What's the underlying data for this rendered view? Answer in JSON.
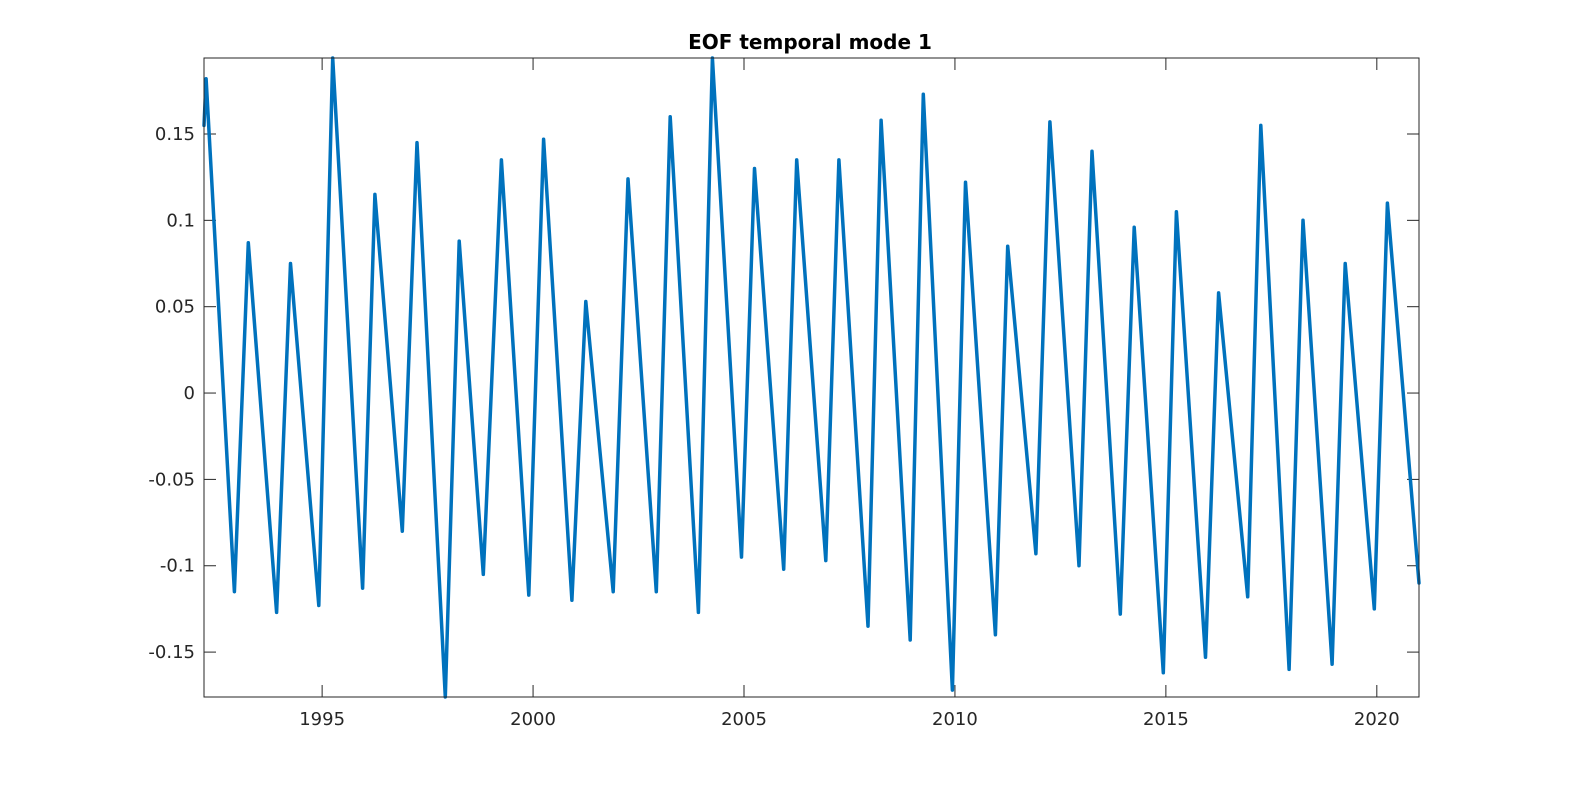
{
  "chart_data": {
    "type": "line",
    "title": "EOF temporal mode 1",
    "xlabel": "",
    "ylabel": "",
    "xlim": [
      1992.2,
      2021.0
    ],
    "ylim": [
      -0.176,
      0.194
    ],
    "xticks": [
      1995,
      2000,
      2005,
      2010,
      2015,
      2020
    ],
    "xtick_labels": [
      "1995",
      "2000",
      "2005",
      "2010",
      "2015",
      "2020"
    ],
    "yticks": [
      -0.15,
      -0.1,
      -0.05,
      0,
      0.05,
      0.1,
      0.15
    ],
    "ytick_labels": [
      "-0.15",
      "-0.1",
      "-0.05",
      "0",
      "0.05",
      "0.1",
      "0.15"
    ],
    "grid": false,
    "box": true,
    "series": [
      {
        "color": "#0072BD",
        "x": [
          1992.2,
          1992.25,
          1992.92,
          1993.25,
          1993.92,
          1994.25,
          1994.92,
          1995.25,
          1995.96,
          1996.25,
          1996.9,
          1997.25,
          1997.92,
          1998.25,
          1998.82,
          1999.25,
          1999.9,
          2000.25,
          2000.92,
          2001.25,
          2001.9,
          2002.25,
          2002.92,
          2003.25,
          2003.92,
          2004.25,
          2004.94,
          2005.25,
          2005.94,
          2006.25,
          2006.94,
          2007.25,
          2007.94,
          2008.25,
          2008.94,
          2009.25,
          2009.94,
          2010.25,
          2010.96,
          2011.25,
          2011.92,
          2012.25,
          2012.94,
          2013.25,
          2013.92,
          2014.25,
          2014.94,
          2015.25,
          2015.94,
          2016.25,
          2016.94,
          2017.25,
          2017.92,
          2018.25,
          2018.94,
          2019.25,
          2019.94,
          2020.25,
          2021.0
        ],
        "y": [
          0.155,
          0.182,
          -0.115,
          0.087,
          -0.127,
          0.075,
          -0.123,
          0.194,
          -0.113,
          0.115,
          -0.08,
          0.145,
          -0.176,
          0.088,
          -0.105,
          0.135,
          -0.117,
          0.147,
          -0.12,
          0.053,
          -0.115,
          0.124,
          -0.115,
          0.16,
          -0.127,
          0.194,
          -0.095,
          0.13,
          -0.102,
          0.135,
          -0.097,
          0.135,
          -0.135,
          0.158,
          -0.143,
          0.173,
          -0.172,
          0.122,
          -0.14,
          0.085,
          -0.093,
          0.157,
          -0.1,
          0.14,
          -0.128,
          0.096,
          -0.162,
          0.105,
          -0.153,
          0.058,
          -0.118,
          0.155,
          -0.16,
          0.1,
          -0.157,
          0.075,
          -0.125,
          0.11,
          -0.11
        ]
      }
    ]
  }
}
